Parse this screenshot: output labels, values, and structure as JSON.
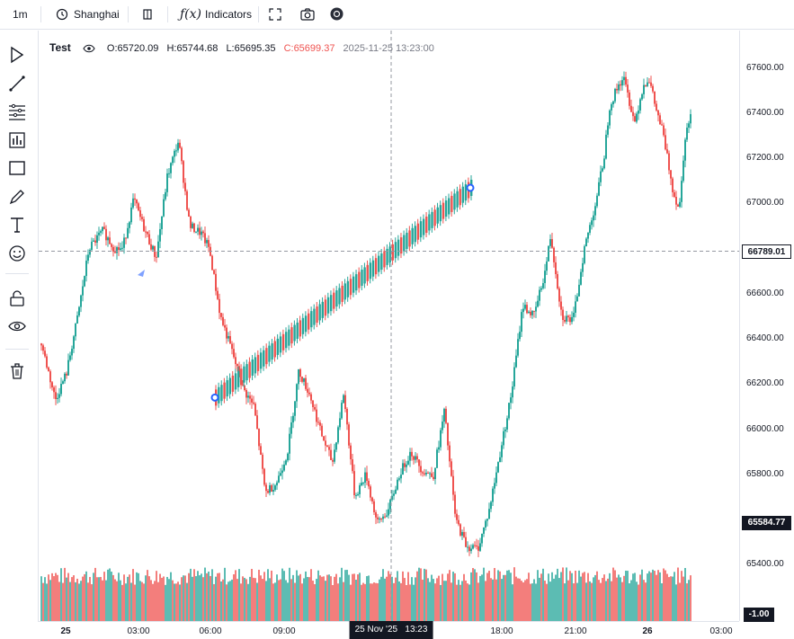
{
  "toolbar": {
    "interval": "1m",
    "timezone": "Shanghai",
    "indicators_label": "Indicators"
  },
  "legend": {
    "symbol": "Test",
    "open": "O:65720.09",
    "high": "H:65744.68",
    "low": "L:65695.35",
    "close": "C:65699.37",
    "datetime": "2025-11-25 13:23:00"
  },
  "price_axis": {
    "ticks": [
      "67600.00",
      "67400.00",
      "67200.00",
      "67000.00",
      "66600.00",
      "66400.00",
      "66200.00",
      "66000.00",
      "65800.00",
      "65400.00"
    ],
    "crosshair_label": "66789.01",
    "last_price_label": "65584.77",
    "volume_label": "-1.00"
  },
  "time_axis": {
    "ticks": [
      "25",
      "03:00",
      "06:00",
      "09:00",
      "18:00",
      "21:00",
      "26",
      "03:00"
    ],
    "crosshair_label": "25 Nov '25   13:23"
  },
  "colors": {
    "up": "#26a69a",
    "down": "#ef5350",
    "crosshair": "#9598a1",
    "drawing": "#2962ff"
  },
  "chart_data": {
    "type": "candlestick",
    "price_range": [
      65300,
      67700
    ],
    "price_path": [
      [
        0,
        66380
      ],
      [
        5,
        66130
      ],
      [
        9,
        66250
      ],
      [
        13,
        66500
      ],
      [
        17,
        66800
      ],
      [
        22,
        66880
      ],
      [
        26,
        66800
      ],
      [
        29,
        66800
      ],
      [
        33,
        67020
      ],
      [
        37,
        66880
      ],
      [
        41,
        66760
      ],
      [
        45,
        67120
      ],
      [
        49,
        67280
      ],
      [
        53,
        66900
      ],
      [
        57,
        66870
      ],
      [
        60,
        66800
      ],
      [
        64,
        66500
      ],
      [
        68,
        66350
      ],
      [
        72,
        66180
      ],
      [
        76,
        66100
      ],
      [
        80,
        65720
      ],
      [
        84,
        65760
      ],
      [
        88,
        65900
      ],
      [
        92,
        66260
      ],
      [
        96,
        66150
      ],
      [
        100,
        65980
      ],
      [
        104,
        65850
      ],
      [
        108,
        66160
      ],
      [
        112,
        65700
      ],
      [
        116,
        65800
      ],
      [
        120,
        65580
      ],
      [
        124,
        65640
      ],
      [
        128,
        65800
      ],
      [
        132,
        65900
      ],
      [
        136,
        65820
      ],
      [
        140,
        65790
      ],
      [
        144,
        66080
      ],
      [
        148,
        65600
      ],
      [
        152,
        65480
      ],
      [
        156,
        65470
      ],
      [
        160,
        65640
      ],
      [
        164,
        65900
      ],
      [
        168,
        66160
      ],
      [
        172,
        66550
      ],
      [
        176,
        66500
      ],
      [
        180,
        66700
      ],
      [
        182,
        66860
      ],
      [
        186,
        66500
      ],
      [
        190,
        66480
      ],
      [
        194,
        66800
      ],
      [
        198,
        67000
      ],
      [
        201,
        67200
      ],
      [
        203,
        67430
      ],
      [
        206,
        67520
      ],
      [
        208,
        67560
      ],
      [
        212,
        67360
      ],
      [
        215,
        67520
      ],
      [
        217,
        67560
      ],
      [
        220,
        67400
      ],
      [
        222,
        67320
      ],
      [
        226,
        67040
      ],
      [
        228,
        66980
      ],
      [
        230,
        67300
      ],
      [
        232,
        67380
      ]
    ],
    "crosshair_price": 66789.01,
    "last_price": 65584.77,
    "drawn_channel": {
      "start_price": 66140,
      "end_price": 67070
    }
  }
}
